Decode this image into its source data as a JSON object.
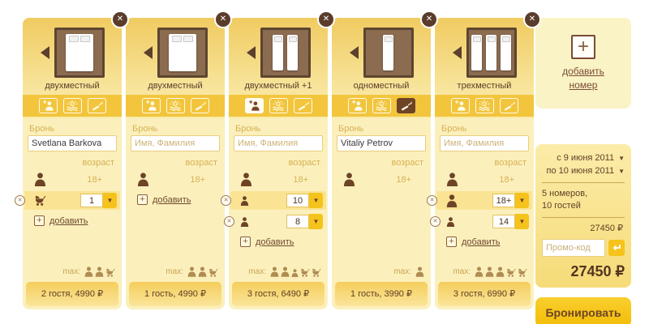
{
  "icons": {
    "close": "✕",
    "caret_down": "▼",
    "plus": "+"
  },
  "labels": {
    "booking": "Бронь",
    "age_header": "возраст",
    "adult_age": "18+",
    "add_guest": "добавить",
    "max": "max:",
    "name_placeholder": "Имя, Фамилия"
  },
  "rooms": [
    {
      "type_label": "двухместный",
      "bed_layout": "double",
      "name_value": "Svetlana Barkova",
      "amenities": [
        {
          "icon": "add-guest-icon",
          "state": "normal"
        },
        {
          "icon": "sea-view-icon",
          "state": "normal"
        },
        {
          "icon": "smoking-icon",
          "state": "normal"
        }
      ],
      "guest_rows": [
        {
          "icon": "infant-icon",
          "value": "1",
          "highlight": true
        }
      ],
      "show_add_link": true,
      "max_icons": [
        "adult-icon",
        "adult-icon",
        "infant-icon"
      ],
      "footer_text": "2 гостя, 4990 ₽"
    },
    {
      "type_label": "двухместный",
      "bed_layout": "double",
      "name_value": "",
      "amenities": [
        {
          "icon": "add-guest-icon",
          "state": "normal"
        },
        {
          "icon": "sea-view-icon",
          "state": "normal"
        },
        {
          "icon": "smoking-icon",
          "state": "normal"
        }
      ],
      "guest_rows": [],
      "show_add_link": true,
      "max_icons": [
        "adult-icon",
        "adult-icon",
        "infant-icon"
      ],
      "footer_text": "1 гость, 4990 ₽"
    },
    {
      "type_label": "двухместный +1",
      "bed_layout": "twin",
      "name_value": "",
      "amenities": [
        {
          "icon": "add-guest-icon",
          "state": "light"
        },
        {
          "icon": "sea-view-icon",
          "state": "normal"
        },
        {
          "icon": "smoking-icon",
          "state": "normal"
        }
      ],
      "guest_rows": [
        {
          "icon": "child-icon",
          "value": "10",
          "highlight": true
        },
        {
          "icon": "child-icon",
          "value": "8",
          "highlight": false
        }
      ],
      "show_add_link": true,
      "max_icons": [
        "adult-icon",
        "adult-icon",
        "child-icon",
        "infant-icon",
        "infant-icon"
      ],
      "footer_text": "3 гостя, 6490 ₽"
    },
    {
      "type_label": "одноместный",
      "bed_layout": "single",
      "name_value": "Vitaliy Petrov",
      "amenities": [
        {
          "icon": "add-guest-icon",
          "state": "normal"
        },
        {
          "icon": "sea-view-icon",
          "state": "normal"
        },
        {
          "icon": "smoking-icon",
          "state": "dark"
        }
      ],
      "guest_rows": [],
      "show_add_link": false,
      "max_icons": [
        "adult-icon"
      ],
      "footer_text": "1 гость, 3990 ₽"
    },
    {
      "type_label": "трехместный",
      "bed_layout": "triple",
      "name_value": "",
      "amenities": [
        {
          "icon": "add-guest-icon",
          "state": "normal"
        },
        {
          "icon": "sea-view-icon",
          "state": "normal"
        },
        {
          "icon": "smoking-icon",
          "state": "normal"
        }
      ],
      "guest_rows": [
        {
          "icon": "adult-icon",
          "value": "18+",
          "highlight": true
        },
        {
          "icon": "child-icon",
          "value": "14",
          "highlight": false
        }
      ],
      "show_add_link": true,
      "max_icons": [
        "adult-icon",
        "adult-icon",
        "adult-icon",
        "infant-icon",
        "infant-icon"
      ],
      "footer_text": "3 гостя, 6990 ₽"
    }
  ],
  "add_room": {
    "label": "добавить номер"
  },
  "summary": {
    "date_from": "с 9 июня 2011",
    "date_to": "по 10 июня 2011",
    "rooms_count": "5 номеров,",
    "guests_count": "10 гостей",
    "subtotal": "27450 ₽",
    "promo_placeholder": "Промо-код",
    "total": "27450 ₽",
    "book_label": "Бронировать"
  },
  "colors": {
    "accent_gold": "#F5C31B",
    "icon_bar_gold": "#F2C53D",
    "dark_brown": "#6E4830",
    "tan_label": "#D7B055",
    "card_bg": "#FBF0BC",
    "row_highlight": "#FAE494"
  }
}
